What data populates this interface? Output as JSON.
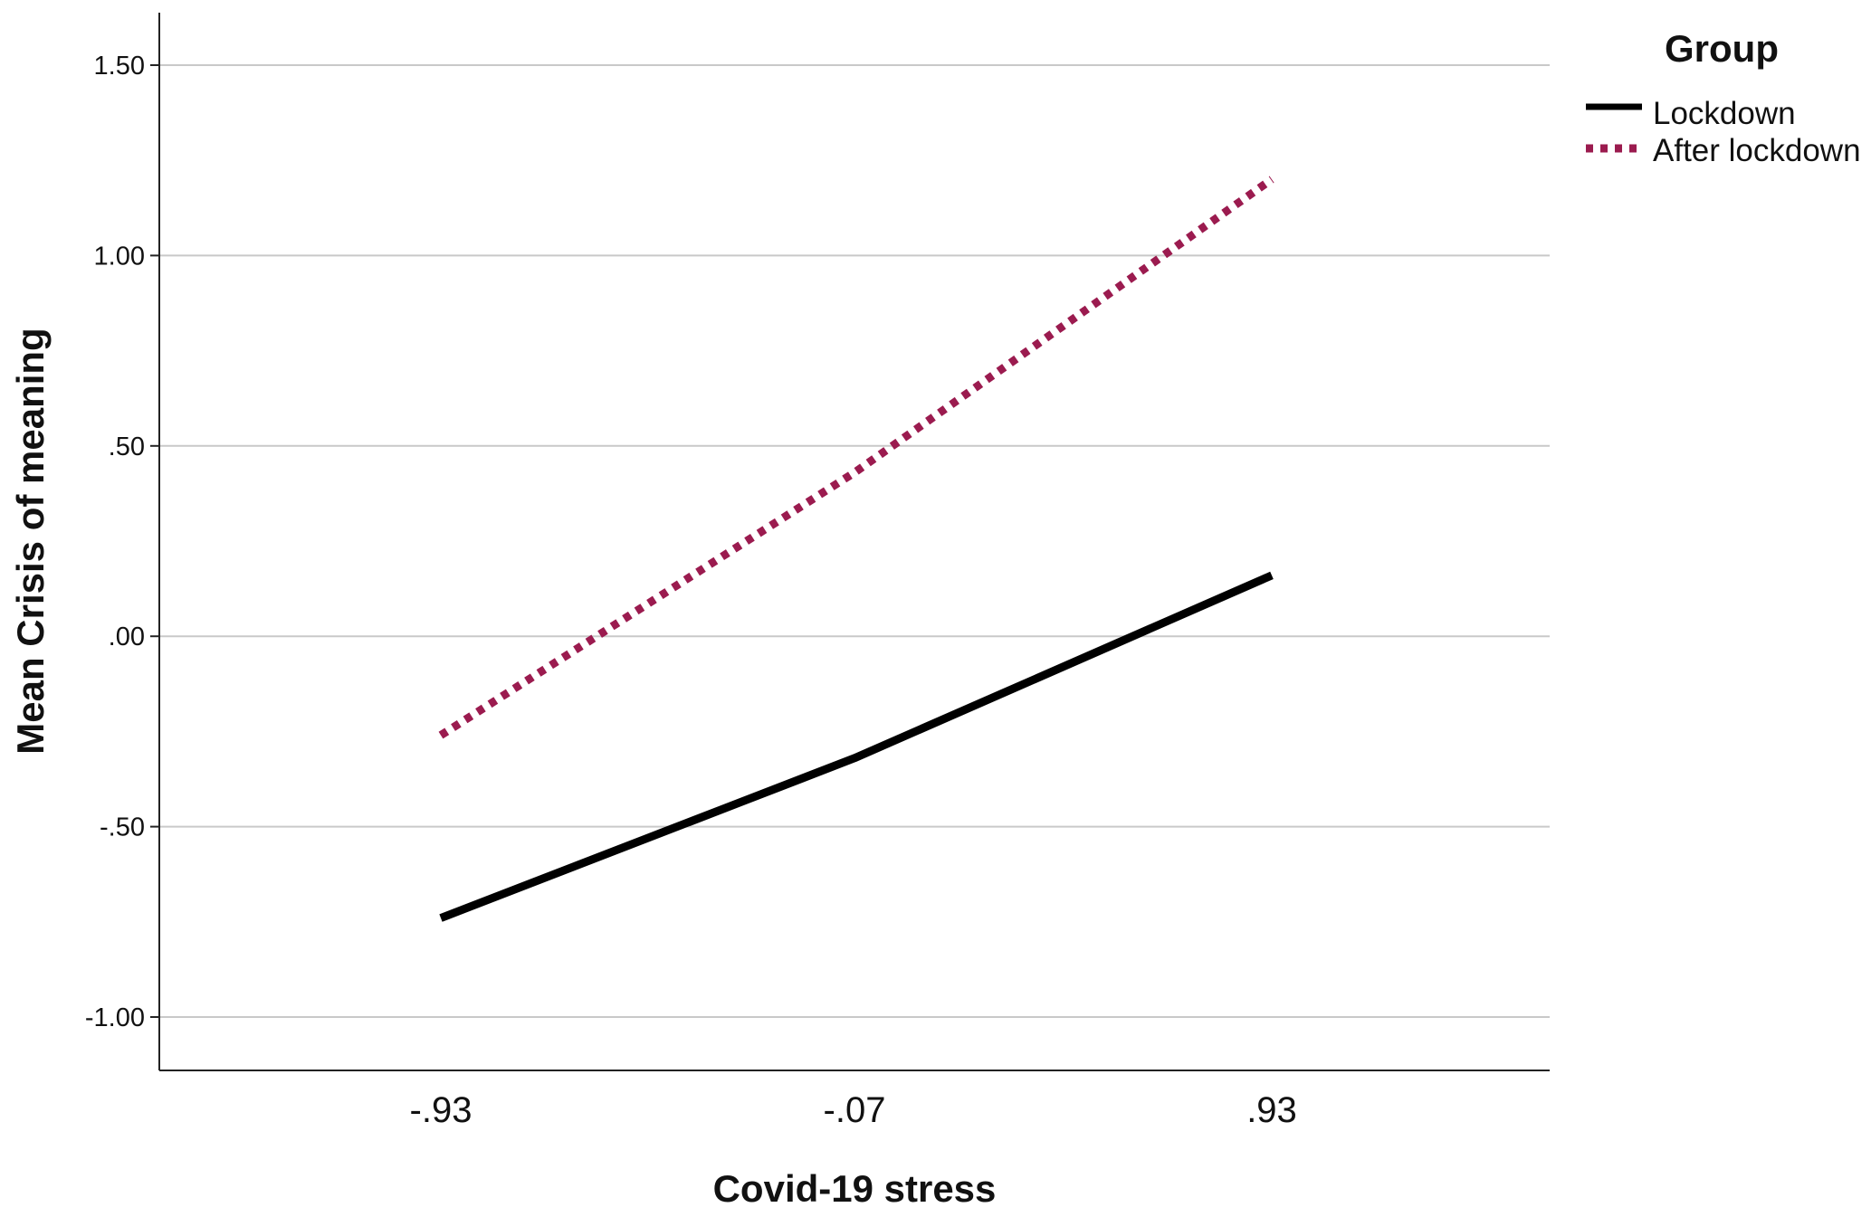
{
  "chart_data": {
    "type": "line",
    "title": "",
    "xlabel": "Covid-19 stress",
    "ylabel": "Mean Crisis of meaning",
    "categories": [
      ".93_neg",
      "-.07",
      ".93"
    ],
    "x_tick_labels": [
      "-.93",
      "-.07",
      ".93"
    ],
    "y_ticks": [
      1.5,
      1.0,
      0.5,
      0.0,
      -0.5,
      -1.0
    ],
    "y_tick_labels": [
      "1.50",
      "1.00",
      ".50",
      ".00",
      "-.50",
      "-1.00"
    ],
    "ylim": [
      -1.13,
      1.6
    ],
    "grid": true,
    "legend": {
      "title": "Group",
      "placement": "top-right"
    },
    "series": [
      {
        "name": "Lockdown",
        "values": [
          -0.74,
          -0.32,
          0.16
        ],
        "color": "#000000",
        "style": "solid"
      },
      {
        "name": "After lockdown",
        "values": [
          -0.26,
          0.43,
          1.2
        ],
        "color": "#9b1b4f",
        "style": "dotted"
      }
    ]
  }
}
